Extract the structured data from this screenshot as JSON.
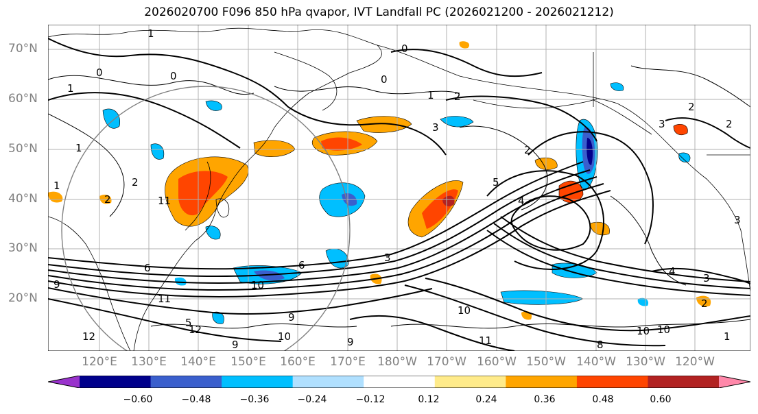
{
  "title": "2026020700 F096 850 hPa qvapor, IVT Landfall PC (2026021200 - 2026021212)",
  "lat_labels": [
    "70°N",
    "60°N",
    "50°N",
    "40°N",
    "30°N",
    "20°N"
  ],
  "lon_labels": [
    "120°E",
    "130°E",
    "140°E",
    "150°E",
    "160°E",
    "170°E",
    "180°W",
    "170°W",
    "160°W",
    "150°W",
    "140°W",
    "130°W",
    "120°W"
  ],
  "colorbar": {
    "ticks": [
      "−0.60",
      "−0.48",
      "−0.36",
      "−0.24",
      "−0.12",
      "0.12",
      "0.24",
      "0.36",
      "0.48",
      "0.60"
    ],
    "colors": [
      "#9933cc",
      "#00008b",
      "#3a5fcd",
      "#00bfff",
      "#b0e0ff",
      "#ffffff",
      "#ffeb8a",
      "#ffa500",
      "#ff4500",
      "#b22222",
      "#ff88aa"
    ]
  },
  "contour_labels": [
    "1",
    "0",
    "0",
    "0",
    "0",
    "1",
    "1",
    "2",
    "2",
    "3",
    "3",
    "2",
    "2",
    "3",
    "4",
    "5",
    "6",
    "10",
    "9",
    "11",
    "12",
    "12",
    "10",
    "9",
    "9",
    "10",
    "11",
    "11",
    "10",
    "8",
    "5",
    "3",
    "2",
    "1",
    "4",
    "1",
    "2",
    "3",
    "9",
    "6",
    "1",
    "2",
    "10"
  ]
}
